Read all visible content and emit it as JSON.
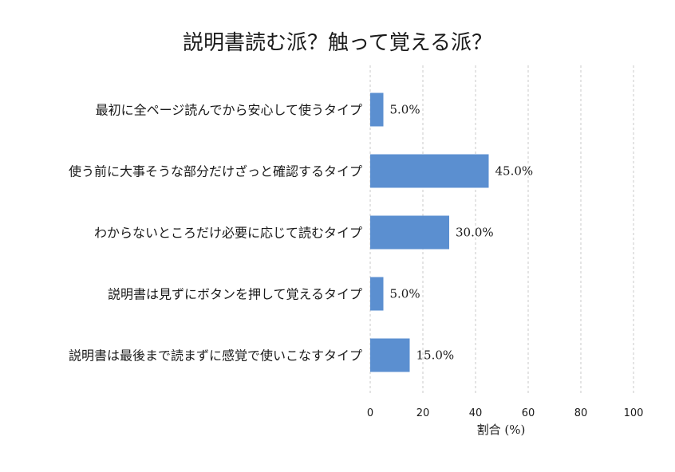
{
  "chart_data": {
    "type": "bar",
    "orientation": "horizontal",
    "title": "説明書読む派？触って覚える派？",
    "xlabel": "割合 (%)",
    "ylabel": "",
    "xlim": [
      0,
      100
    ],
    "xticks": [
      "0",
      "20",
      "40",
      "60",
      "80",
      "100"
    ],
    "grid": "vertical, dashed",
    "categories": [
      "最初に全ページ読んでから安心して使うタイプ",
      "使う前に大事そうな部分だけざっと確認するタイプ",
      "わからないところだけ必要に応じて読むタイプ",
      "説明書は見ずにボタンを押して覚えるタイプ",
      "説明書は最後まで読まずに感覚で使いこなすタイプ"
    ],
    "values": [
      5.0,
      45.0,
      30.0,
      5.0,
      15.0
    ],
    "value_labels": [
      "5.0%",
      "45.0%",
      "30.0%",
      "5.0%",
      "15.0%"
    ],
    "bar_color": "#5b8fd0"
  }
}
